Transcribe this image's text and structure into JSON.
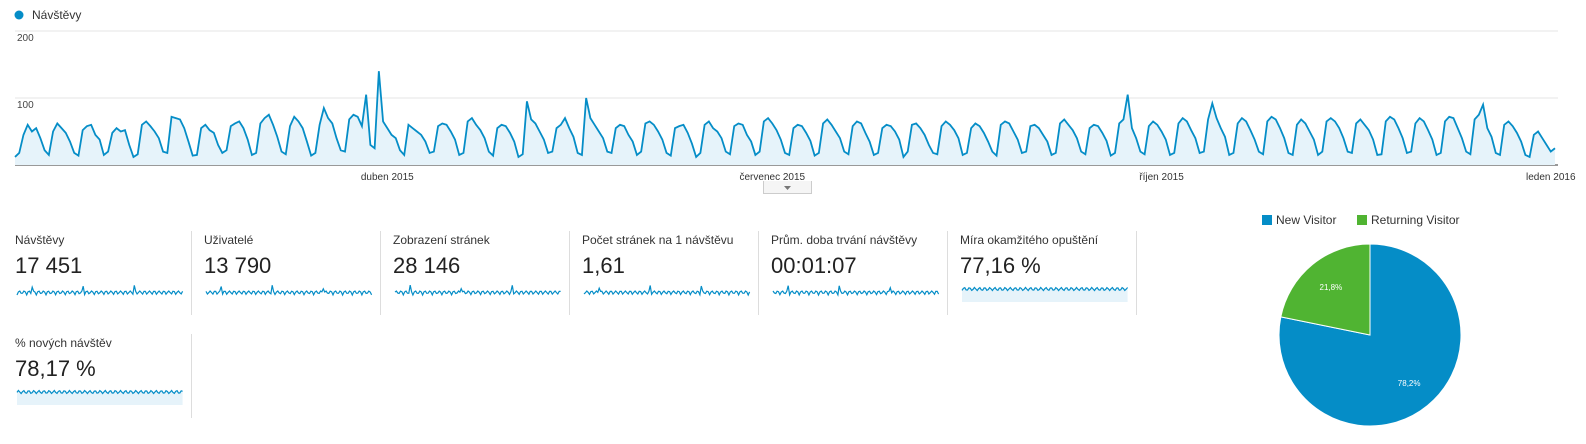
{
  "main_chart": {
    "type": "line",
    "legend": "Návštěvy",
    "color": "#058dc7",
    "fill": "#e6f3fa",
    "ylim": [
      0,
      200
    ],
    "yticks": [
      100,
      200
    ],
    "grid": true,
    "categories": [
      null,
      null,
      null,
      null,
      null,
      null,
      null,
      null,
      null,
      null,
      null,
      null,
      null,
      null,
      null,
      null,
      null,
      null,
      null,
      null,
      null,
      null,
      null,
      null,
      null,
      null,
      null,
      null,
      null,
      null,
      null,
      null,
      null,
      null,
      null,
      null,
      null,
      null,
      null,
      null,
      null,
      null,
      null,
      null,
      null,
      null,
      null,
      null,
      null,
      null,
      null,
      null,
      null,
      null,
      null,
      null,
      null,
      null,
      null,
      null,
      null,
      null,
      null,
      null,
      null,
      null,
      null,
      null,
      null,
      null,
      null,
      null,
      null,
      null,
      null,
      null,
      null,
      null,
      null,
      null,
      null,
      null,
      null,
      null,
      null,
      null,
      null,
      null,
      "duben 2015",
      null,
      null,
      null,
      null,
      null,
      null,
      null,
      null,
      null,
      null,
      null,
      null,
      null,
      null,
      null,
      null,
      null,
      null,
      null,
      null,
      null,
      null,
      null,
      null,
      null,
      null,
      null,
      null,
      null,
      null,
      null,
      null,
      null,
      null,
      null,
      null,
      null,
      null,
      null,
      null,
      null,
      null,
      null,
      null,
      null,
      null,
      null,
      null,
      null,
      null,
      null,
      null,
      null,
      null,
      null,
      null,
      null,
      null,
      null,
      null,
      null,
      null,
      null,
      null,
      null,
      null,
      null,
      null,
      null,
      null,
      null,
      null,
      null,
      null,
      null,
      null,
      null,
      null,
      null,
      null,
      null,
      null,
      null,
      null,
      null,
      null,
      null,
      null,
      null,
      null,
      "červenec 2015",
      null,
      null,
      null,
      null,
      null,
      null,
      null,
      null,
      null,
      null,
      null,
      null,
      null,
      null,
      null,
      null,
      null,
      null,
      null,
      null,
      null,
      null,
      null,
      null,
      null,
      null,
      null,
      null,
      null,
      null,
      null,
      null,
      null,
      null,
      null,
      null,
      null,
      null,
      null,
      null,
      null,
      null,
      null,
      null,
      null,
      null,
      null,
      null,
      null,
      null,
      null,
      null,
      null,
      null,
      null,
      null,
      null,
      null,
      null,
      null,
      null,
      null,
      null,
      null,
      null,
      null,
      null,
      null,
      null,
      null,
      null,
      null,
      null,
      null,
      null,
      null,
      null,
      null,
      null,
      null,
      null,
      null,
      null,
      null,
      null,
      null,
      null,
      null,
      null,
      null,
      null,
      "říjen 2015",
      null,
      null,
      null,
      null,
      null,
      null,
      null,
      null,
      null,
      null,
      null,
      null,
      null,
      null,
      null,
      null,
      null,
      null,
      null,
      null,
      null,
      null,
      null,
      null,
      null,
      null,
      null,
      null,
      null,
      null,
      null,
      null,
      null,
      null,
      null,
      null,
      null,
      null,
      null,
      null,
      null,
      null,
      null,
      null,
      null,
      null,
      null,
      null,
      null,
      null,
      null,
      null,
      null,
      null,
      null,
      null,
      null,
      null,
      null,
      null,
      null,
      null,
      null,
      null,
      null,
      null,
      null,
      null,
      null,
      null,
      null,
      null,
      null,
      null,
      null,
      null,
      null,
      null,
      null,
      null,
      null,
      null,
      null,
      null,
      null,
      null,
      null,
      null,
      null,
      null,
      null,
      "leden 2016",
      null
    ],
    "values": [
      12,
      18,
      45,
      60,
      50,
      55,
      40,
      22,
      15,
      50,
      62,
      55,
      48,
      35,
      18,
      14,
      52,
      58,
      60,
      45,
      38,
      15,
      20,
      48,
      55,
      50,
      52,
      30,
      12,
      16,
      60,
      65,
      58,
      50,
      40,
      20,
      18,
      72,
      70,
      68,
      55,
      35,
      14,
      15,
      55,
      60,
      52,
      48,
      30,
      18,
      22,
      58,
      62,
      65,
      55,
      38,
      15,
      18,
      62,
      70,
      75,
      60,
      42,
      20,
      16,
      58,
      72,
      65,
      55,
      35,
      14,
      18,
      60,
      85,
      70,
      62,
      40,
      22,
      20,
      68,
      75,
      72,
      58,
      105,
      30,
      25,
      140,
      65,
      55,
      45,
      40,
      22,
      15,
      60,
      55,
      50,
      45,
      35,
      18,
      20,
      58,
      62,
      60,
      50,
      38,
      15,
      18,
      65,
      70,
      60,
      52,
      40,
      20,
      14,
      55,
      60,
      58,
      48,
      35,
      12,
      16,
      95,
      68,
      62,
      50,
      38,
      18,
      20,
      55,
      60,
      70,
      55,
      42,
      18,
      15,
      100,
      70,
      60,
      50,
      40,
      20,
      18,
      55,
      60,
      58,
      45,
      35,
      15,
      20,
      62,
      65,
      60,
      50,
      38,
      18,
      14,
      55,
      58,
      60,
      48,
      32,
      12,
      18,
      60,
      65,
      55,
      50,
      40,
      20,
      16,
      58,
      62,
      60,
      45,
      35,
      15,
      20,
      65,
      70,
      62,
      52,
      38,
      18,
      15,
      55,
      60,
      58,
      48,
      36,
      14,
      18,
      62,
      68,
      60,
      50,
      40,
      20,
      16,
      58,
      65,
      62,
      48,
      35,
      15,
      18,
      55,
      60,
      58,
      50,
      38,
      12,
      20,
      60,
      62,
      55,
      45,
      30,
      18,
      16,
      58,
      65,
      60,
      52,
      40,
      15,
      18,
      55,
      62,
      58,
      48,
      35,
      20,
      14,
      60,
      65,
      62,
      50,
      38,
      18,
      20,
      58,
      60,
      55,
      45,
      35,
      15,
      18,
      62,
      68,
      60,
      52,
      40,
      20,
      16,
      55,
      60,
      58,
      48,
      36,
      14,
      18,
      62,
      68,
      105,
      55,
      40,
      20,
      16,
      58,
      65,
      60,
      50,
      38,
      15,
      18,
      62,
      70,
      65,
      52,
      40,
      18,
      20,
      68,
      92,
      70,
      55,
      42,
      15,
      18,
      62,
      70,
      65,
      52,
      38,
      20,
      16,
      65,
      72,
      68,
      55,
      40,
      18,
      15,
      60,
      68,
      62,
      50,
      38,
      15,
      20,
      65,
      70,
      65,
      55,
      40,
      20,
      18,
      62,
      68,
      60,
      52,
      38,
      15,
      16,
      65,
      72,
      68,
      55,
      40,
      18,
      20,
      62,
      70,
      65,
      52,
      38,
      15,
      18,
      65,
      72,
      70,
      55,
      40,
      20,
      16,
      68,
      75,
      90,
      55,
      42,
      18,
      15,
      60,
      65,
      58,
      48,
      35,
      15,
      12,
      45,
      50,
      40,
      30,
      20,
      25
    ]
  },
  "metrics": [
    {
      "label": "Návštěvy",
      "value": "17 451"
    },
    {
      "label": "Uživatelé",
      "value": "13 790"
    },
    {
      "label": "Zobrazení stránek",
      "value": "28 146"
    },
    {
      "label": "Počet stránek na 1 návštěvu",
      "value": "1,61"
    },
    {
      "label": "Prům. doba trvání návštěvy",
      "value": "00:01:07"
    },
    {
      "label": "Míra okamžitého opuštění",
      "value": "77,16 %"
    },
    {
      "label": "% nových návštěv",
      "value": "78,17 %"
    }
  ],
  "pie_chart": {
    "type": "pie",
    "series": [
      {
        "name": "New Visitor",
        "color": "#058dc7",
        "values": [
          78.2
        ],
        "value_labels": [
          "78,2%"
        ]
      },
      {
        "name": "Returning Visitor",
        "color": "#50b432",
        "values": [
          21.8
        ],
        "value_labels": [
          "21,8%"
        ]
      }
    ]
  }
}
